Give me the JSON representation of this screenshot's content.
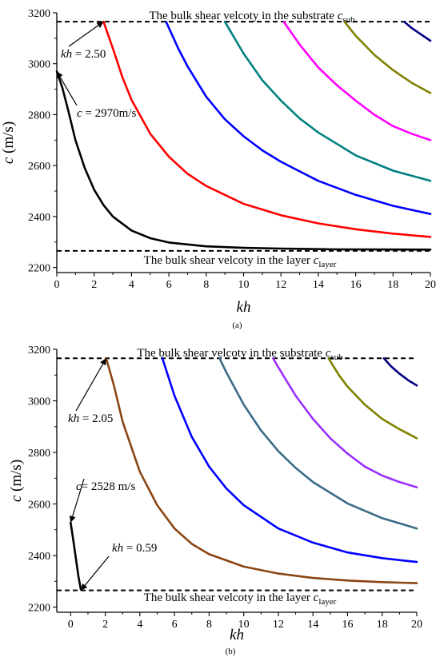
{
  "chart_data": [
    {
      "panel": "(a)",
      "type": "line",
      "xlabel": "kh",
      "ylabel": "c (m/s)",
      "xlim": [
        0,
        20
      ],
      "ylim": [
        2180,
        3200
      ],
      "x_ticks": [
        0,
        2,
        4,
        6,
        8,
        10,
        12,
        14,
        16,
        18,
        20
      ],
      "y_ticks": [
        2200,
        2400,
        2600,
        2800,
        3000,
        3200
      ],
      "reference_lines": [
        {
          "y": 3165,
          "label": "The bulk shear velcoty in the substrate c",
          "sub": "sub"
        },
        {
          "y": 2265,
          "label": "The bulk shear velcoty in the layer c",
          "sub": "layer"
        }
      ],
      "annotations": [
        {
          "pre": "kh",
          "text": " = 2.50",
          "target": [
            2.5,
            3165
          ]
        },
        {
          "pre": "c",
          "text": " = 2970m/s",
          "target": [
            0,
            2970
          ]
        }
      ],
      "series": [
        {
          "color": "#000000",
          "x": [
            0,
            0.3,
            0.6,
            1,
            1.5,
            2,
            2.5,
            3,
            4,
            5,
            6,
            8,
            10,
            12,
            15,
            20
          ],
          "y": [
            2970,
            2905,
            2820,
            2700,
            2590,
            2505,
            2445,
            2400,
            2345,
            2315,
            2298,
            2283,
            2277,
            2274,
            2271,
            2270
          ]
        },
        {
          "color": "#ff0000",
          "x": [
            2.5,
            3,
            3.5,
            4,
            5,
            6,
            7,
            8,
            10,
            12,
            14,
            16,
            18,
            20
          ],
          "y": [
            3165,
            3060,
            2950,
            2858,
            2725,
            2635,
            2568,
            2520,
            2450,
            2405,
            2373,
            2350,
            2333,
            2320
          ]
        },
        {
          "color": "#0000ff",
          "x": [
            5.85,
            6.5,
            7,
            8,
            9,
            10,
            11,
            12,
            14,
            16,
            18,
            20
          ],
          "y": [
            3165,
            3060,
            2990,
            2870,
            2782,
            2715,
            2660,
            2615,
            2540,
            2485,
            2442,
            2410
          ]
        },
        {
          "color": "#008080",
          "x": [
            9,
            10,
            11,
            12,
            13,
            14,
            16,
            18,
            20
          ],
          "y": [
            3165,
            3040,
            2935,
            2855,
            2785,
            2730,
            2640,
            2580,
            2540
          ]
        },
        {
          "color": "#ff00ff",
          "x": [
            12.15,
            13,
            14,
            15,
            16,
            17,
            18,
            19,
            20
          ],
          "y": [
            3165,
            3075,
            2985,
            2915,
            2855,
            2800,
            2755,
            2725,
            2700
          ]
        },
        {
          "color": "#808000",
          "x": [
            15.4,
            16,
            17,
            18,
            19,
            20
          ],
          "y": [
            3165,
            3110,
            3035,
            2975,
            2925,
            2885
          ]
        },
        {
          "color": "#000080",
          "x": [
            18.6,
            19,
            19.5,
            20
          ],
          "y": [
            3165,
            3140,
            3115,
            3090
          ]
        }
      ]
    },
    {
      "panel": "(b)",
      "type": "line",
      "xlabel": "kh",
      "ylabel": "c (m/s)",
      "xlim": [
        -0.8,
        20
      ],
      "ylim": [
        2180,
        3200
      ],
      "x_ticks": [
        0,
        2,
        4,
        6,
        8,
        10,
        12,
        14,
        16,
        18,
        20
      ],
      "y_ticks": [
        2200,
        2400,
        2600,
        2800,
        3000,
        3200
      ],
      "reference_lines": [
        {
          "y": 3165,
          "label": "The bulk shear velcoty in the substrate c",
          "sub": "sub"
        },
        {
          "y": 2265,
          "label": "The bulk shear velcoty in the layer c",
          "sub": "layer"
        }
      ],
      "annotations": [
        {
          "pre": "kh",
          "text": " = 2.05",
          "target": [
            2.05,
            3165
          ]
        },
        {
          "pre": "c",
          "text": "= 2528 m/s",
          "target": [
            0,
            2528
          ]
        },
        {
          "pre": "kh",
          "text": " = 0.59",
          "target": [
            0.59,
            2265
          ]
        }
      ],
      "series": [
        {
          "color": "#000000",
          "x": [
            0,
            0.15,
            0.3,
            0.45,
            0.59
          ],
          "y": [
            2528,
            2460,
            2390,
            2320,
            2268
          ]
        },
        {
          "color": "#8b4513",
          "x": [
            2.05,
            2.5,
            3,
            4,
            5,
            6,
            7,
            8,
            10,
            12,
            14,
            16,
            18,
            20
          ],
          "y": [
            3165,
            3060,
            2920,
            2725,
            2595,
            2505,
            2445,
            2405,
            2357,
            2330,
            2313,
            2303,
            2297,
            2293
          ]
        },
        {
          "color": "#0000ff",
          "x": [
            5.3,
            6,
            7,
            8,
            9,
            10,
            12,
            14,
            16,
            18,
            20
          ],
          "y": [
            3165,
            3020,
            2860,
            2745,
            2660,
            2595,
            2505,
            2450,
            2412,
            2390,
            2375
          ]
        },
        {
          "color": "#3a6b87",
          "x": [
            8.6,
            9,
            10,
            11,
            12,
            13,
            14,
            16,
            18,
            20
          ],
          "y": [
            3165,
            3110,
            2985,
            2885,
            2805,
            2740,
            2685,
            2602,
            2545,
            2505
          ]
        },
        {
          "color": "#9b30ff",
          "x": [
            11.7,
            12,
            13,
            14,
            15,
            16,
            17,
            18,
            19,
            20
          ],
          "y": [
            3165,
            3130,
            3020,
            2930,
            2855,
            2795,
            2745,
            2710,
            2685,
            2665
          ]
        },
        {
          "color": "#808000",
          "x": [
            14.9,
            15.5,
            16,
            17,
            18,
            19,
            20
          ],
          "y": [
            3165,
            3100,
            3055,
            2985,
            2930,
            2890,
            2855
          ]
        },
        {
          "color": "#000080",
          "x": [
            18.1,
            18.5,
            19,
            19.5,
            20
          ],
          "y": [
            3165,
            3135,
            3105,
            3080,
            3060
          ]
        }
      ]
    }
  ]
}
